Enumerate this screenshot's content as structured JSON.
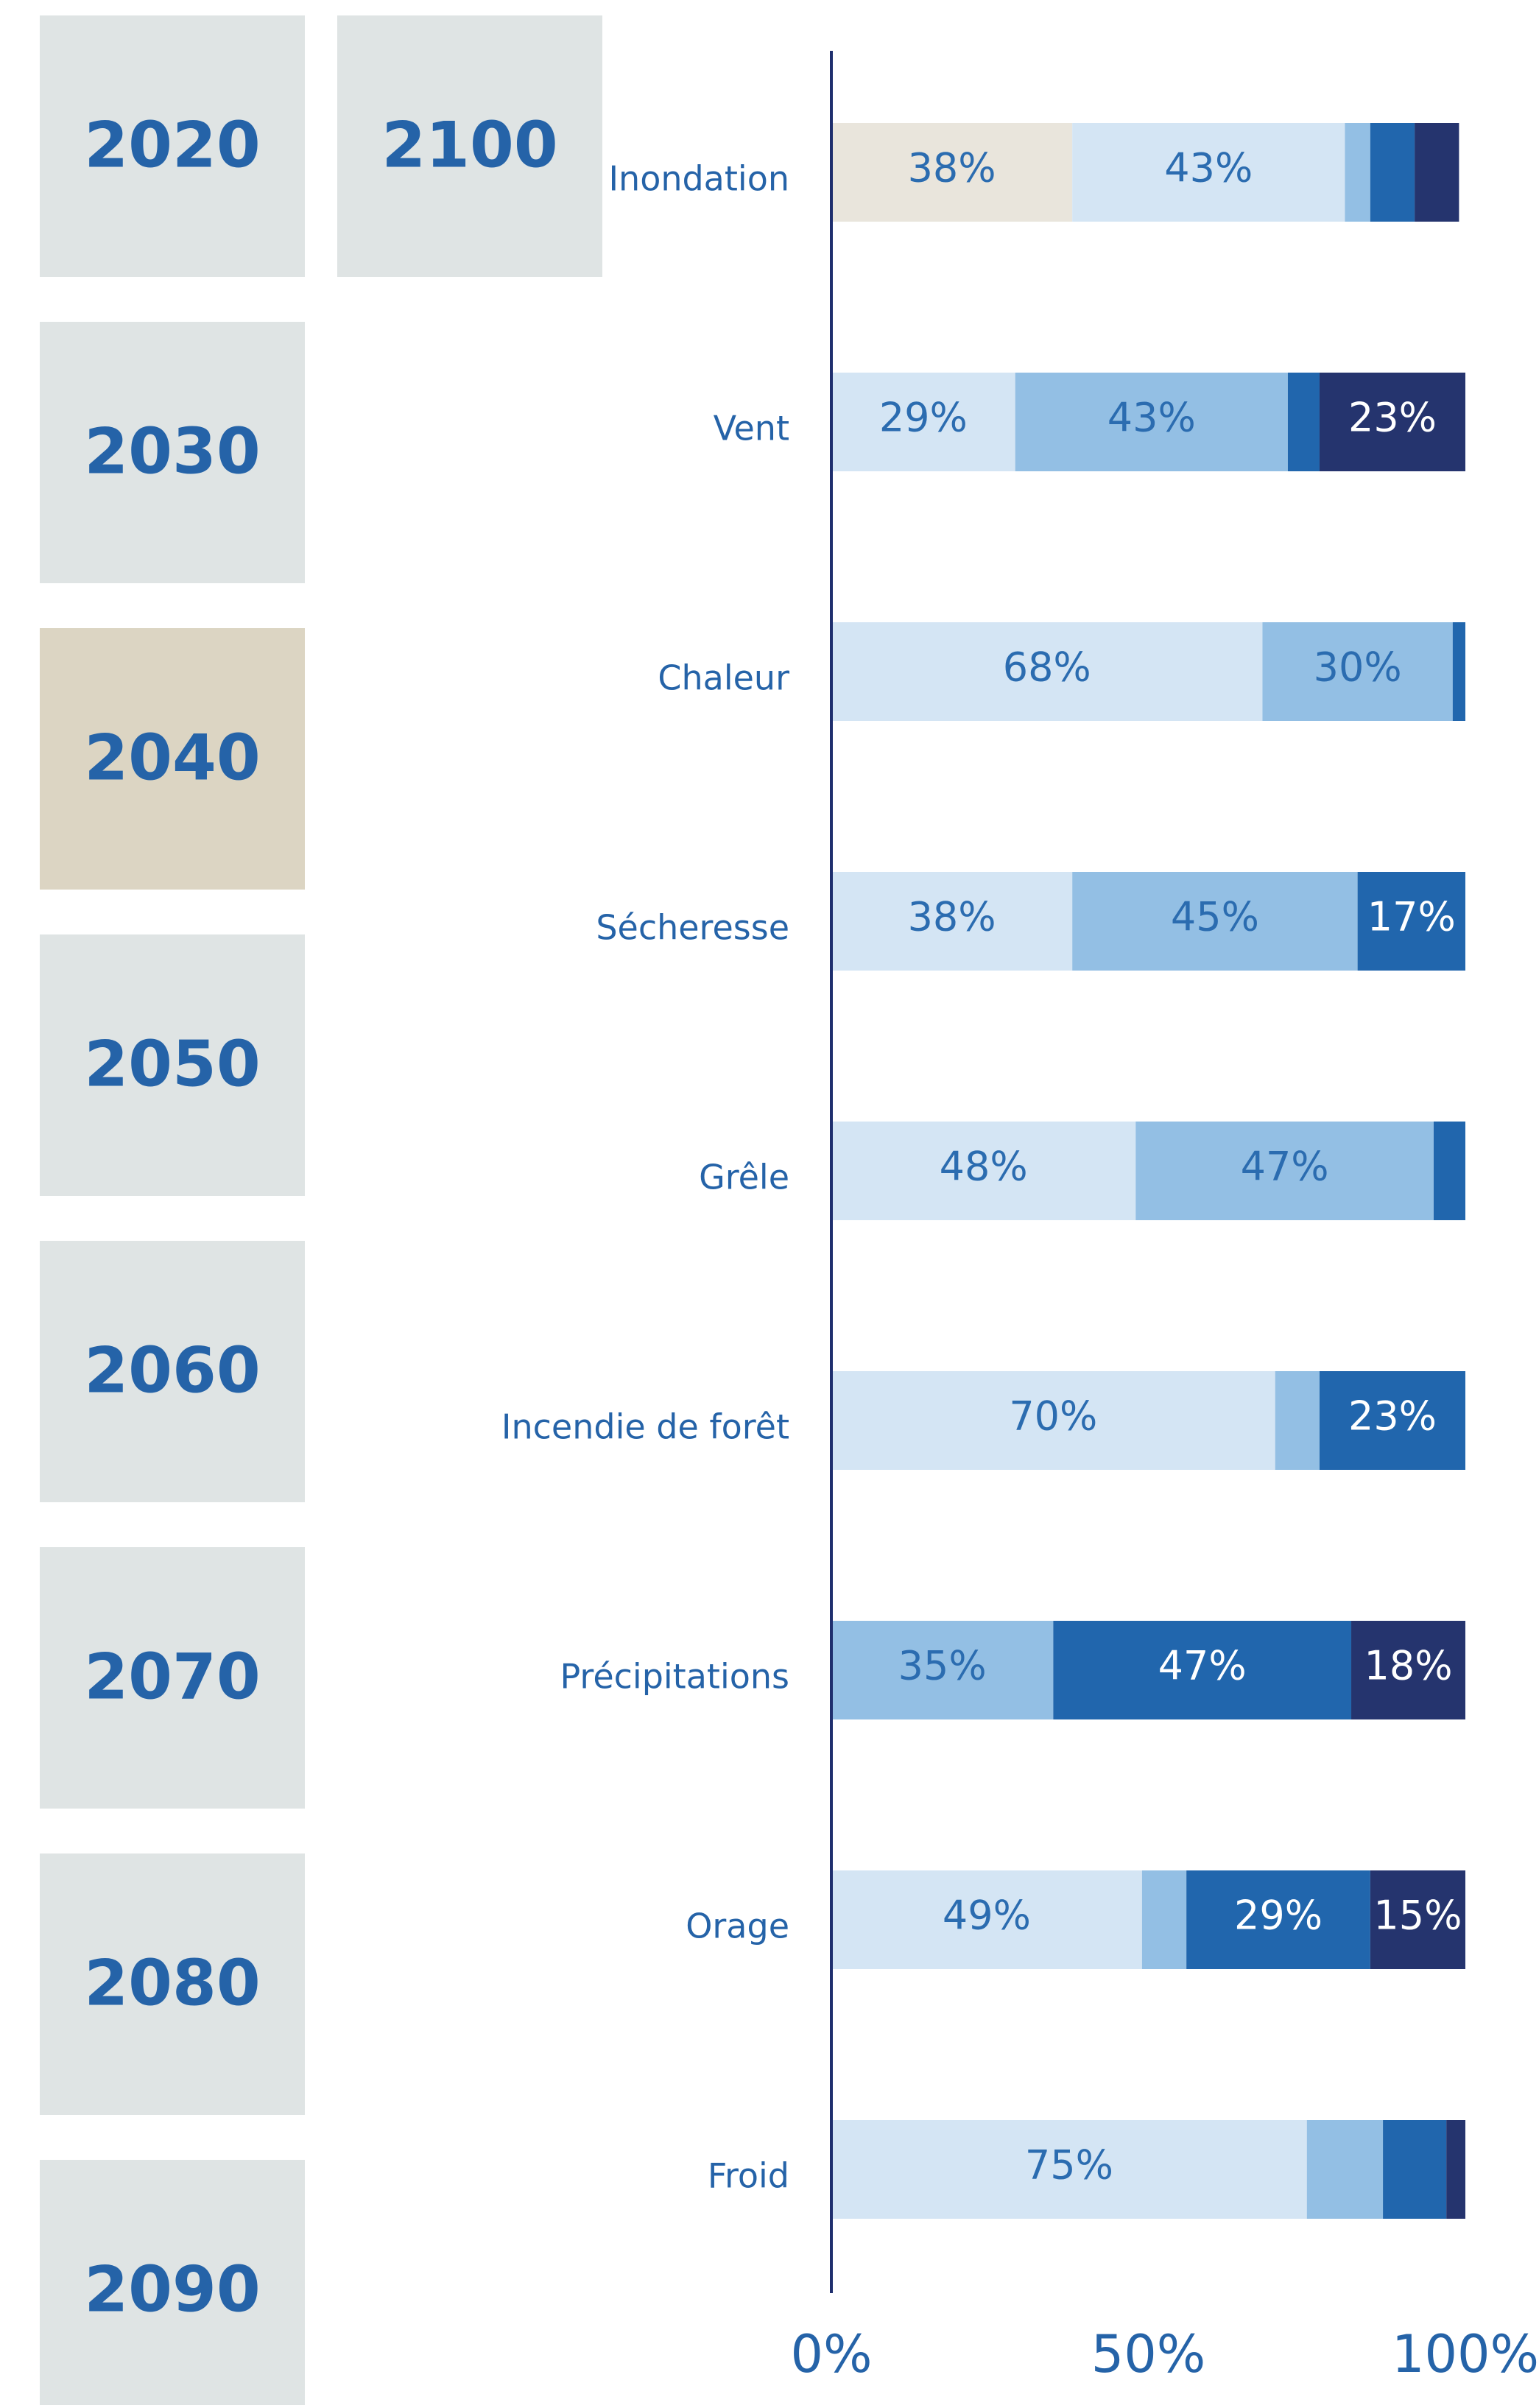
{
  "years": [
    "2020",
    "2030",
    "2040",
    "2050",
    "2060",
    "2070",
    "2080",
    "2090",
    "2100"
  ],
  "year_color": "#dfe4e4",
  "selected_year": 2,
  "selected_year_color": "#dcd5c3",
  "year_text_color": "#2563a8",
  "chart_data": {
    "type": "stacked-bar-horizontal",
    "categories": [
      "Inondation",
      "Vent",
      "Chaleur",
      "Sécheresse",
      "Grêle",
      "Incendie de forêt",
      "Précipitations",
      "Orage",
      "Froid"
    ],
    "series": [
      {
        "color": "#e9e5dc",
        "label_color": "#2b6cb0",
        "values": [
          38,
          0,
          0,
          0,
          0,
          0,
          0,
          0,
          0
        ],
        "value_labels": [
          "38%",
          null,
          null,
          null,
          null,
          null,
          null,
          null,
          null
        ]
      },
      {
        "color": "#d4e5f4",
        "label_color": "#2b6cb0",
        "values": [
          43,
          29,
          68,
          38,
          48,
          70,
          0,
          49,
          75
        ],
        "value_labels": [
          "43%",
          "29%",
          "68%",
          "38%",
          "48%",
          "70%",
          null,
          "49%",
          "75%"
        ]
      },
      {
        "color": "#93bfe4",
        "label_color": "#2b6cb0",
        "values": [
          4,
          43,
          30,
          45,
          47,
          7,
          35,
          7,
          12
        ],
        "value_labels": [
          null,
          "43%",
          "30%",
          "45%",
          "47%",
          null,
          "35%",
          null,
          null
        ]
      },
      {
        "color": "#2166ad",
        "label_color": "#ffffff",
        "values": [
          7,
          5,
          2,
          17,
          5,
          23,
          47,
          29,
          10
        ],
        "value_labels": [
          null,
          null,
          null,
          "17%",
          null,
          "23%",
          "47%",
          "29%",
          null
        ]
      },
      {
        "color": "#25346e",
        "label_color": "#ffffff",
        "values": [
          7,
          23,
          0,
          0,
          0,
          0,
          18,
          15,
          3
        ],
        "value_labels": [
          null,
          "23%",
          null,
          null,
          null,
          null,
          "18%",
          "15%",
          null
        ]
      }
    ],
    "xlim": [
      0,
      100
    ],
    "xticks": [
      {
        "value": 0,
        "label": "0%"
      },
      {
        "value": 50,
        "label": "50%"
      },
      {
        "value": 100,
        "label": "100%"
      }
    ],
    "axis_color": "#1f2f6e",
    "text_color": "#2563a8"
  }
}
